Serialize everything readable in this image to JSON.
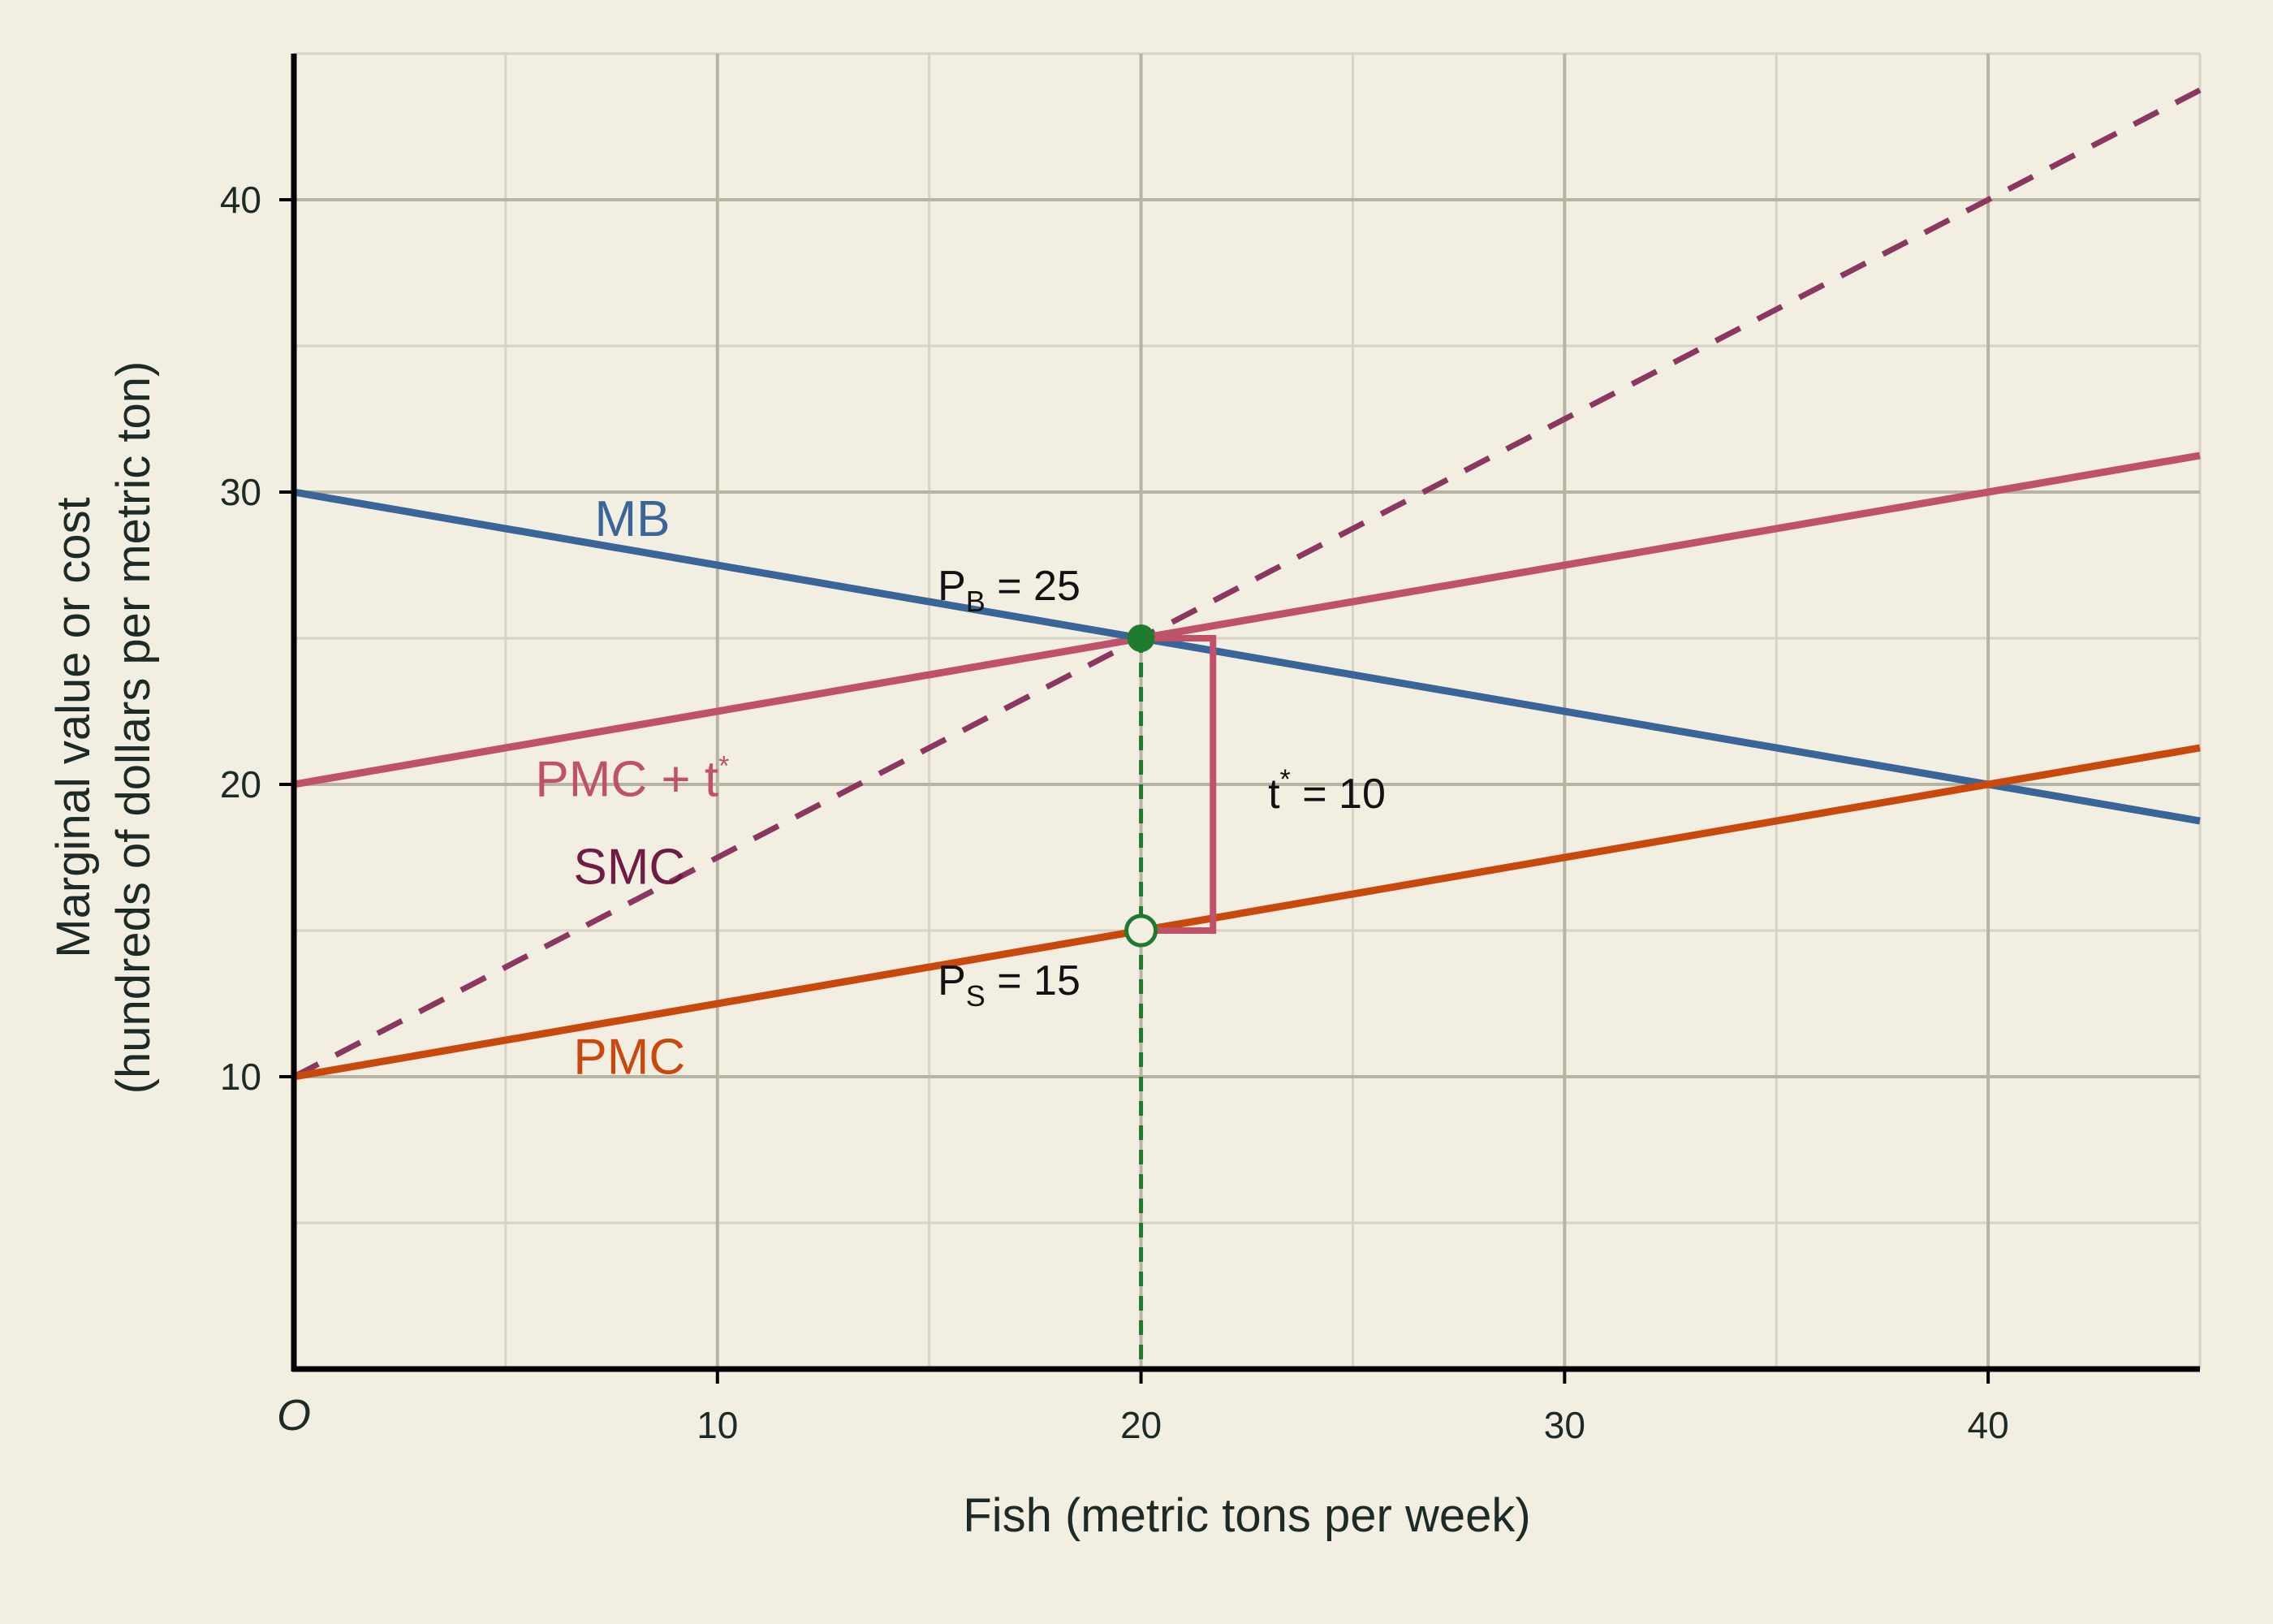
{
  "chart_data": {
    "type": "line",
    "xlabel": "Fish (metric tons per week)",
    "ylabel_line1": "Marginal value or cost",
    "ylabel_line2": "(hundreds of dollars per metric ton)",
    "origin_label": "O",
    "xlim": [
      0,
      45
    ],
    "ylim": [
      0,
      45
    ],
    "x_ticks": [
      10,
      20,
      30,
      40
    ],
    "y_ticks": [
      10,
      20,
      30,
      40
    ],
    "minor_grid_step": 5,
    "grid": true,
    "series": [
      {
        "name": "MB",
        "x": [
          0,
          45
        ],
        "y": [
          30,
          18.75
        ],
        "color": "#3a6599",
        "style": "solid"
      },
      {
        "name": "PMC + t*",
        "x": [
          0,
          45
        ],
        "y": [
          20,
          31.25
        ],
        "color": "#c0516a",
        "style": "solid"
      },
      {
        "name": "SMC",
        "x": [
          0,
          45
        ],
        "y": [
          10,
          43.75
        ],
        "color": "#8b3760",
        "style": "dashed"
      },
      {
        "name": "PMC",
        "x": [
          0,
          45
        ],
        "y": [
          10,
          21.25
        ],
        "color": "#c9490d",
        "style": "solid"
      }
    ],
    "labels": {
      "mb": "MB",
      "pmc_t": "PMC + t",
      "pmc_t_sup": "*",
      "smc": "SMC",
      "pmc": "PMC",
      "pb_p": "P",
      "pb_sub": "B",
      "pb_val": " = 25",
      "ps_p": "P",
      "ps_sub": "S",
      "ps_val": " = 15",
      "t_t": "t",
      "t_sup": "*",
      "t_val": " = 10"
    },
    "equilibrium": {
      "x": 20,
      "buyer_price": 25,
      "seller_price": 15,
      "tax": 10
    },
    "colors": {
      "grid_major": "#b7b4a3",
      "grid_minor": "#d7d3c4",
      "axis": "#000000",
      "marker": "#1e7a2e",
      "tax_bracket": "#c0516a",
      "tax_label": "#6e1b45"
    }
  }
}
